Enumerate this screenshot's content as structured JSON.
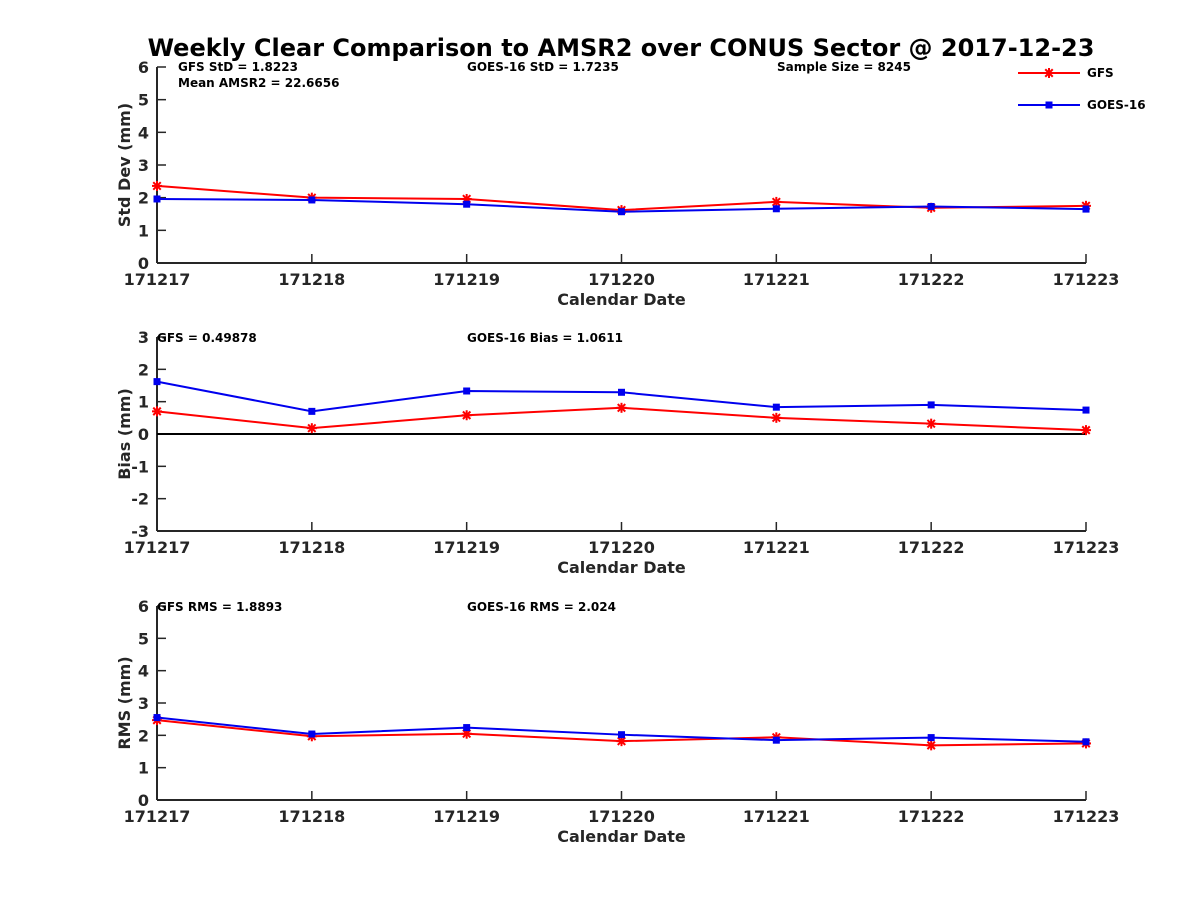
{
  "chart_data": {
    "type": "line",
    "title": "Weekly Clear Comparison to AMSR2 over CONUS Sector @ 2017-12-23",
    "categories": [
      "171217",
      "171218",
      "171219",
      "171220",
      "171221",
      "171222",
      "171223"
    ],
    "series_style": [
      {
        "name": "GFS",
        "color": "#ff0000",
        "marker": "asterisk"
      },
      {
        "name": "GOES-16",
        "color": "#0000ee",
        "marker": "square"
      }
    ],
    "legend": {
      "placement": "top-right",
      "entries": [
        "GFS",
        "GOES-16"
      ]
    },
    "panels": [
      {
        "id": "std",
        "xlabel": "Calendar Date",
        "ylabel": "Std Dev (mm)",
        "ylim": [
          0,
          6
        ],
        "yticks": [
          0,
          1,
          2,
          3,
          4,
          5,
          6
        ],
        "zero_line": false,
        "annotations": [
          "GFS StD = 1.8223",
          "Mean AMSR2 = 22.6656",
          "GOES-16 StD = 1.7235",
          "Sample Size = 8245"
        ],
        "series": [
          {
            "name": "GFS",
            "values": [
              2.36,
              2.0,
              1.96,
              1.62,
              1.87,
              1.69,
              1.75
            ]
          },
          {
            "name": "GOES-16",
            "values": [
              1.96,
              1.93,
              1.8,
              1.57,
              1.66,
              1.73,
              1.65
            ]
          }
        ]
      },
      {
        "id": "bias",
        "xlabel": "Calendar Date",
        "ylabel": "Bias (mm)",
        "ylim": [
          -3,
          3
        ],
        "yticks": [
          -3,
          -2,
          -1,
          0,
          1,
          2,
          3
        ],
        "zero_line": true,
        "annotations": [
          "GFS = 0.49878",
          "GOES-16 Bias  = 1.0611"
        ],
        "series": [
          {
            "name": "GFS",
            "values": [
              0.7,
              0.18,
              0.58,
              0.81,
              0.5,
              0.32,
              0.12
            ]
          },
          {
            "name": "GOES-16",
            "values": [
              1.62,
              0.7,
              1.33,
              1.29,
              0.83,
              0.9,
              0.74
            ]
          }
        ]
      },
      {
        "id": "rms",
        "xlabel": "Calendar Date",
        "ylabel": "RMS (mm)",
        "ylim": [
          0,
          6
        ],
        "yticks": [
          0,
          1,
          2,
          3,
          4,
          5,
          6
        ],
        "zero_line": false,
        "annotations": [
          "GFS RMS = 1.8893",
          "GOES-16 RMS = 2.024"
        ],
        "series": [
          {
            "name": "GFS",
            "values": [
              2.47,
              1.97,
              2.05,
              1.82,
              1.94,
              1.69,
              1.75
            ]
          },
          {
            "name": "GOES-16",
            "values": [
              2.55,
              2.04,
              2.24,
              2.02,
              1.85,
              1.93,
              1.8
            ]
          }
        ]
      }
    ]
  }
}
